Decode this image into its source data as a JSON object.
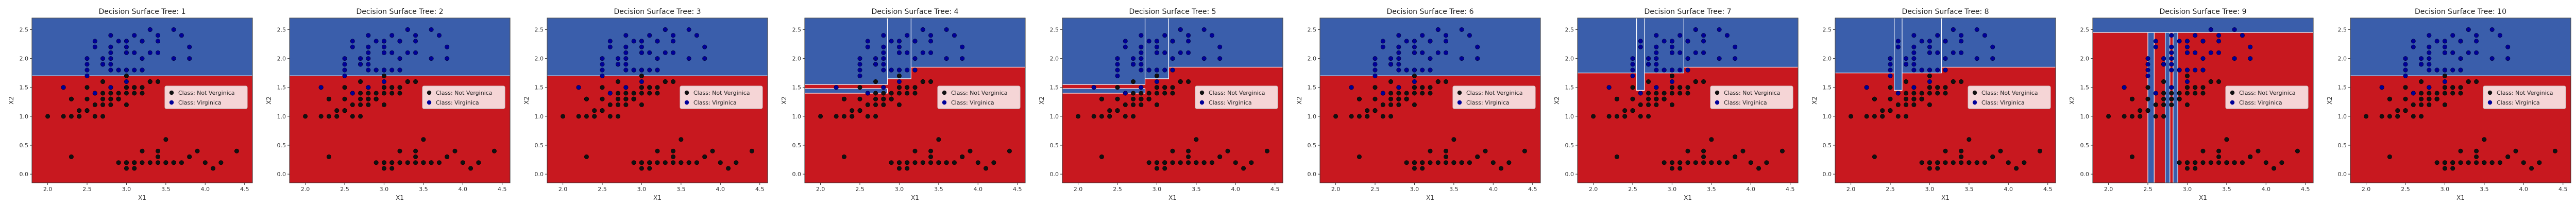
{
  "figure": {
    "surface_colors": {
      "not_virginica": "#c8181f",
      "virginica": "#3a5eab",
      "boundary": "#ffffff"
    },
    "point_colors": {
      "not_virginica": "#111111",
      "virginica": "#000099"
    }
  },
  "chart_data": [
    {
      "type": "scatter",
      "title": "Decision Surface Tree: 1",
      "xlabel": "X1",
      "ylabel": "X2",
      "xlim": [
        1.8,
        4.6
      ],
      "ylim": [
        -0.15,
        2.7
      ],
      "xticks": [
        "2.0",
        "2.5",
        "3.0",
        "3.5",
        "4.0",
        "4.5"
      ],
      "yticks": [
        "0.0",
        "0.5",
        "1.0",
        "1.5",
        "2.0",
        "2.5"
      ],
      "legend": [
        "Class: Not Verginica",
        "Class: Virginica"
      ],
      "legend_position": "center-right",
      "regions": [
        {
          "class": "virginica",
          "x": [
            1.8,
            4.6
          ],
          "y": [
            1.7,
            2.7
          ]
        }
      ]
    },
    {
      "type": "scatter",
      "title": "Decision Surface Tree: 2",
      "xlabel": "X1",
      "ylabel": "X2",
      "xlim": [
        1.8,
        4.6
      ],
      "ylim": [
        -0.15,
        2.7
      ],
      "xticks": [
        "2.0",
        "2.5",
        "3.0",
        "3.5",
        "4.0",
        "4.5"
      ],
      "yticks": [
        "0.0",
        "0.5",
        "1.0",
        "1.5",
        "2.0",
        "2.5"
      ],
      "legend": [
        "Class: Not Verginica",
        "Class: Virginica"
      ],
      "legend_position": "center-right",
      "regions": [
        {
          "class": "virginica",
          "x": [
            1.8,
            4.6
          ],
          "y": [
            1.7,
            2.7
          ]
        }
      ]
    },
    {
      "type": "scatter",
      "title": "Decision Surface Tree: 3",
      "xlabel": "X1",
      "ylabel": "X2",
      "xlim": [
        1.8,
        4.6
      ],
      "ylim": [
        -0.15,
        2.7
      ],
      "xticks": [
        "2.0",
        "2.5",
        "3.0",
        "3.5",
        "4.0",
        "4.5"
      ],
      "yticks": [
        "0.0",
        "0.5",
        "1.0",
        "1.5",
        "2.0",
        "2.5"
      ],
      "legend": [
        "Class: Not Verginica",
        "Class: Virginica"
      ],
      "legend_position": "center-right",
      "regions": [
        {
          "class": "virginica",
          "x": [
            1.8,
            4.6
          ],
          "y": [
            1.7,
            2.7
          ]
        }
      ]
    },
    {
      "type": "scatter",
      "title": "Decision Surface Tree: 4",
      "xlabel": "X1",
      "ylabel": "X2",
      "xlim": [
        1.8,
        4.6
      ],
      "ylim": [
        -0.15,
        2.7
      ],
      "xticks": [
        "2.0",
        "2.5",
        "3.0",
        "3.5",
        "4.0",
        "4.5"
      ],
      "yticks": [
        "0.0",
        "0.5",
        "1.0",
        "1.5",
        "2.0",
        "2.5"
      ],
      "legend": [
        "Class: Not Verginica",
        "Class: Virginica"
      ],
      "legend_position": "center-right",
      "regions": [
        {
          "class": "virginica",
          "x": [
            3.15,
            4.6
          ],
          "y": [
            1.85,
            2.7
          ]
        },
        {
          "class": "virginica",
          "x": [
            2.85,
            3.15
          ],
          "y": [
            1.65,
            2.7
          ]
        },
        {
          "class": "virginica",
          "x": [
            1.8,
            2.85
          ],
          "y": [
            1.55,
            2.7
          ]
        },
        {
          "class": "virginica",
          "x": [
            1.8,
            2.85
          ],
          "y": [
            1.4,
            1.48
          ]
        }
      ]
    },
    {
      "type": "scatter",
      "title": "Decision Surface Tree: 5",
      "xlabel": "X1",
      "ylabel": "X2",
      "xlim": [
        1.8,
        4.6
      ],
      "ylim": [
        -0.15,
        2.7
      ],
      "xticks": [
        "2.0",
        "2.5",
        "3.0",
        "3.5",
        "4.0",
        "4.5"
      ],
      "yticks": [
        "0.0",
        "0.5",
        "1.0",
        "1.5",
        "2.0",
        "2.5"
      ],
      "legend": [
        "Class: Not Verginica",
        "Class: Virginica"
      ],
      "legend_position": "center-right",
      "regions": [
        {
          "class": "virginica",
          "x": [
            3.15,
            4.6
          ],
          "y": [
            1.85,
            2.7
          ]
        },
        {
          "class": "virginica",
          "x": [
            2.85,
            3.15
          ],
          "y": [
            1.65,
            2.7
          ]
        },
        {
          "class": "virginica",
          "x": [
            1.8,
            2.85
          ],
          "y": [
            1.55,
            2.7
          ]
        },
        {
          "class": "virginica",
          "x": [
            1.8,
            2.85
          ],
          "y": [
            1.4,
            1.48
          ]
        }
      ]
    },
    {
      "type": "scatter",
      "title": "Decision Surface Tree: 6",
      "xlabel": "X1",
      "ylabel": "X2",
      "xlim": [
        1.8,
        4.6
      ],
      "ylim": [
        -0.15,
        2.7
      ],
      "xticks": [
        "2.0",
        "2.5",
        "3.0",
        "3.5",
        "4.0",
        "4.5"
      ],
      "yticks": [
        "0.0",
        "0.5",
        "1.0",
        "1.5",
        "2.0",
        "2.5"
      ],
      "legend": [
        "Class: Not Verginica",
        "Class: Virginica"
      ],
      "legend_position": "center-right",
      "regions": [
        {
          "class": "virginica",
          "x": [
            1.8,
            4.6
          ],
          "y": [
            1.7,
            2.7
          ]
        }
      ]
    },
    {
      "type": "scatter",
      "title": "Decision Surface Tree: 7",
      "xlabel": "X1",
      "ylabel": "X2",
      "xlim": [
        1.8,
        4.6
      ],
      "ylim": [
        -0.15,
        2.7
      ],
      "xticks": [
        "2.0",
        "2.5",
        "3.0",
        "3.5",
        "4.0",
        "4.5"
      ],
      "yticks": [
        "0.0",
        "0.5",
        "1.0",
        "1.5",
        "2.0",
        "2.5"
      ],
      "legend": [
        "Class: Not Verginica",
        "Class: Virginica"
      ],
      "legend_position": "center-right",
      "regions": [
        {
          "class": "virginica",
          "x": [
            3.15,
            4.6
          ],
          "y": [
            1.85,
            2.7
          ]
        },
        {
          "class": "virginica",
          "x": [
            2.65,
            3.15
          ],
          "y": [
            1.75,
            2.7
          ]
        },
        {
          "class": "virginica",
          "x": [
            1.8,
            2.55
          ],
          "y": [
            1.75,
            2.7
          ]
        },
        {
          "class": "virginica",
          "x": [
            2.55,
            2.65
          ],
          "y": [
            1.45,
            2.7
          ]
        }
      ]
    },
    {
      "type": "scatter",
      "title": "Decision Surface Tree: 8",
      "xlabel": "X1",
      "ylabel": "X2",
      "xlim": [
        1.8,
        4.6
      ],
      "ylim": [
        -0.15,
        2.7
      ],
      "xticks": [
        "2.0",
        "2.5",
        "3.0",
        "3.5",
        "4.0",
        "4.5"
      ],
      "yticks": [
        "0.0",
        "0.5",
        "1.0",
        "1.5",
        "2.0",
        "2.5"
      ],
      "legend": [
        "Class: Not Verginica",
        "Class: Virginica"
      ],
      "legend_position": "center-right",
      "regions": [
        {
          "class": "virginica",
          "x": [
            3.15,
            4.6
          ],
          "y": [
            1.85,
            2.7
          ]
        },
        {
          "class": "virginica",
          "x": [
            2.65,
            3.15
          ],
          "y": [
            1.75,
            2.7
          ]
        },
        {
          "class": "virginica",
          "x": [
            1.8,
            2.55
          ],
          "y": [
            1.75,
            2.7
          ]
        },
        {
          "class": "virginica",
          "x": [
            2.55,
            2.65
          ],
          "y": [
            1.45,
            2.7
          ]
        }
      ]
    },
    {
      "type": "scatter",
      "title": "Decision Surface Tree: 9",
      "xlabel": "X1",
      "ylabel": "X2",
      "xlim": [
        1.8,
        4.6
      ],
      "ylim": [
        -0.15,
        2.7
      ],
      "xticks": [
        "2.0",
        "2.5",
        "3.0",
        "3.5",
        "4.0",
        "4.5"
      ],
      "yticks": [
        "0.0",
        "0.5",
        "1.0",
        "1.5",
        "2.0",
        "2.5"
      ],
      "legend": [
        "Class: Not Verginica",
        "Class: Virginica"
      ],
      "legend_position": "center-right",
      "regions": [
        {
          "class": "virginica",
          "x": [
            1.8,
            4.6
          ],
          "y": [
            2.45,
            2.7
          ]
        },
        {
          "class": "virginica",
          "x": [
            2.5,
            2.58
          ],
          "y": [
            -0.15,
            2.45
          ]
        },
        {
          "class": "virginica",
          "x": [
            2.72,
            2.78
          ],
          "y": [
            -0.15,
            2.45
          ]
        },
        {
          "class": "virginica",
          "x": [
            2.82,
            2.88
          ],
          "y": [
            -0.15,
            2.45
          ]
        }
      ]
    },
    {
      "type": "scatter",
      "title": "Decision Surface Tree: 10",
      "xlabel": "X1",
      "ylabel": "X2",
      "xlim": [
        1.8,
        4.6
      ],
      "ylim": [
        -0.15,
        2.7
      ],
      "xticks": [
        "2.0",
        "2.5",
        "3.0",
        "3.5",
        "4.0",
        "4.5"
      ],
      "yticks": [
        "0.0",
        "0.5",
        "1.0",
        "1.5",
        "2.0",
        "2.5"
      ],
      "legend": [
        "Class: Not Verginica",
        "Class: Virginica"
      ],
      "legend_position": "center-right",
      "regions": [
        {
          "class": "virginica",
          "x": [
            1.8,
            4.6
          ],
          "y": [
            1.7,
            2.7
          ]
        }
      ]
    }
  ],
  "points": {
    "not_virginica": [
      [
        3.5,
        0.2
      ],
      [
        3.0,
        0.2
      ],
      [
        3.2,
        0.2
      ],
      [
        3.1,
        0.2
      ],
      [
        3.6,
        0.2
      ],
      [
        3.9,
        0.4
      ],
      [
        3.4,
        0.3
      ],
      [
        3.4,
        0.2
      ],
      [
        2.9,
        0.2
      ],
      [
        3.1,
        0.1
      ],
      [
        3.7,
        0.2
      ],
      [
        3.0,
        0.1
      ],
      [
        4.0,
        0.2
      ],
      [
        4.4,
        0.4
      ],
      [
        3.8,
        0.3
      ],
      [
        3.8,
        0.3
      ],
      [
        3.3,
        0.2
      ],
      [
        3.5,
        0.2
      ],
      [
        3.6,
        0.2
      ],
      [
        4.1,
        0.1
      ],
      [
        4.2,
        0.2
      ],
      [
        3.5,
        0.6
      ],
      [
        2.3,
        0.3
      ],
      [
        3.2,
        0.4
      ],
      [
        3.0,
        0.2
      ],
      [
        3.4,
        0.4
      ],
      [
        3.1,
        0.2
      ],
      [
        3.2,
        1.4
      ],
      [
        3.2,
        1.5
      ],
      [
        3.1,
        1.5
      ],
      [
        2.3,
        1.3
      ],
      [
        2.8,
        1.5
      ],
      [
        2.8,
        1.3
      ],
      [
        3.3,
        1.6
      ],
      [
        2.4,
        1.0
      ],
      [
        2.9,
        1.3
      ],
      [
        2.7,
        1.4
      ],
      [
        2.0,
        1.0
      ],
      [
        3.0,
        1.5
      ],
      [
        2.2,
        1.0
      ],
      [
        2.9,
        1.4
      ],
      [
        2.9,
        1.3
      ],
      [
        3.1,
        1.4
      ],
      [
        3.0,
        1.5
      ],
      [
        2.7,
        1.0
      ],
      [
        2.2,
        1.5
      ],
      [
        2.5,
        1.1
      ],
      [
        3.2,
        1.8
      ],
      [
        2.8,
        1.3
      ],
      [
        2.5,
        1.5
      ],
      [
        2.8,
        1.2
      ],
      [
        2.9,
        1.3
      ],
      [
        3.0,
        1.4
      ],
      [
        2.8,
        1.4
      ],
      [
        3.0,
        1.7
      ],
      [
        2.6,
        1.0
      ],
      [
        2.4,
        1.1
      ],
      [
        2.7,
        1.2
      ],
      [
        2.7,
        1.6
      ],
      [
        3.4,
        1.6
      ],
      [
        3.1,
        1.5
      ],
      [
        2.3,
        1.3
      ],
      [
        2.5,
        1.3
      ],
      [
        2.6,
        1.2
      ],
      [
        2.3,
        1.0
      ],
      [
        2.7,
        1.3
      ],
      [
        3.0,
        1.2
      ],
      [
        2.9,
        1.3
      ],
      [
        2.5,
        1.1
      ],
      [
        2.8,
        1.3
      ],
      [
        2.4,
        1.0
      ],
      [
        3.3,
        1.6
      ],
      [
        2.6,
        1.4
      ]
    ],
    "virginica": [
      [
        3.3,
        2.5
      ],
      [
        2.7,
        1.9
      ],
      [
        3.0,
        2.1
      ],
      [
        2.9,
        1.8
      ],
      [
        3.0,
        2.2
      ],
      [
        2.5,
        1.7
      ],
      [
        2.9,
        1.8
      ],
      [
        2.5,
        1.8
      ],
      [
        3.6,
        2.5
      ],
      [
        3.2,
        2.0
      ],
      [
        2.7,
        1.9
      ],
      [
        3.0,
        2.1
      ],
      [
        2.5,
        2.0
      ],
      [
        2.8,
        2.4
      ],
      [
        3.2,
        2.3
      ],
      [
        3.0,
        1.8
      ],
      [
        3.8,
        2.2
      ],
      [
        2.6,
        2.3
      ],
      [
        3.2,
        2.3
      ],
      [
        2.8,
        2.0
      ],
      [
        3.3,
        2.1
      ],
      [
        3.2,
        1.8
      ],
      [
        2.8,
        1.8
      ],
      [
        3.0,
        1.8
      ],
      [
        2.8,
        2.1
      ],
      [
        3.0,
        1.6
      ],
      [
        2.8,
        1.9
      ],
      [
        3.8,
        2.0
      ],
      [
        2.8,
        2.2
      ],
      [
        2.6,
        1.4
      ],
      [
        3.0,
        2.3
      ],
      [
        3.4,
        2.4
      ],
      [
        3.1,
        1.8
      ],
      [
        3.1,
        2.1
      ],
      [
        3.1,
        2.4
      ],
      [
        2.7,
        1.9
      ],
      [
        3.2,
        2.3
      ],
      [
        3.3,
        2.5
      ],
      [
        3.0,
        2.3
      ],
      [
        2.5,
        1.9
      ],
      [
        3.4,
        2.3
      ],
      [
        3.0,
        1.8
      ],
      [
        2.2,
        1.5
      ],
      [
        2.8,
        1.5
      ],
      [
        2.6,
        2.2
      ],
      [
        3.6,
        2.0
      ],
      [
        3.4,
        2.1
      ],
      [
        2.9,
        2.3
      ],
      [
        2.7,
        2.0
      ],
      [
        3.7,
        2.4
      ]
    ]
  }
}
